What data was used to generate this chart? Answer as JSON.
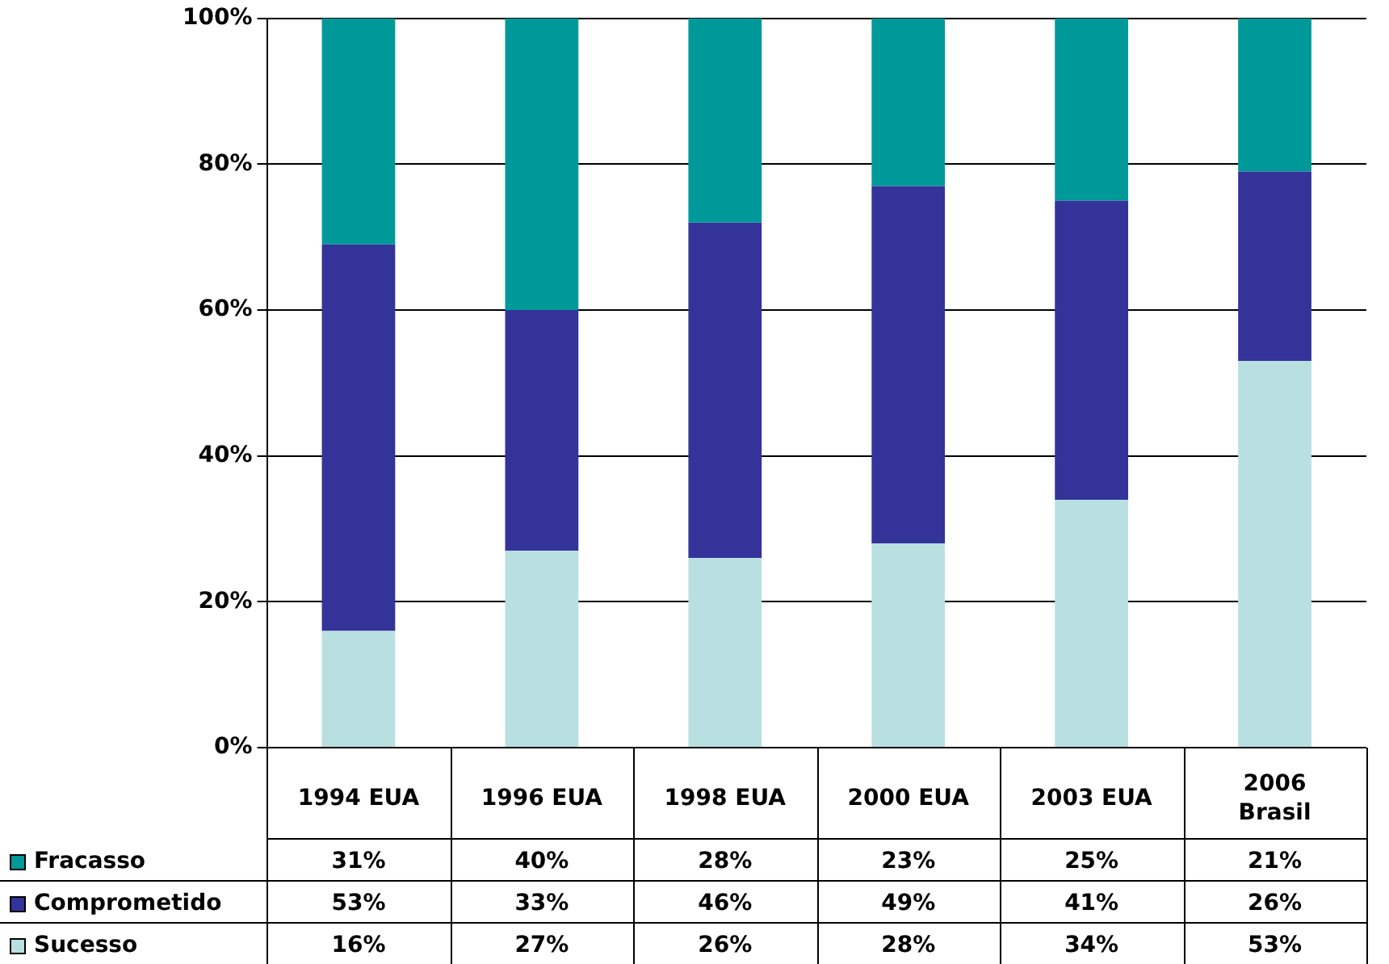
{
  "chart_data": {
    "type": "bar",
    "stacked": true,
    "categories": [
      "1994 EUA",
      "1996 EUA",
      "1998 EUA",
      "2000 EUA",
      "2003 EUA",
      "2006 Brasil"
    ],
    "series": [
      {
        "name": "Sucesso",
        "color": "#b9e0e0",
        "values": [
          16,
          27,
          26,
          28,
          34,
          53
        ],
        "value_labels": [
          "16%",
          "27%",
          "26%",
          "28%",
          "34%",
          "53%"
        ]
      },
      {
        "name": "Comprometido",
        "color": "#333399",
        "values": [
          53,
          33,
          46,
          49,
          41,
          26
        ],
        "value_labels": [
          "53%",
          "33%",
          "46%",
          "49%",
          "41%",
          "26%"
        ]
      },
      {
        "name": "Fracasso",
        "color": "#009999",
        "values": [
          31,
          40,
          28,
          23,
          25,
          21
        ],
        "value_labels": [
          "31%",
          "40%",
          "28%",
          "23%",
          "25%",
          "21%"
        ]
      }
    ],
    "ylim": [
      0,
      100
    ],
    "yticks": [
      {
        "value": 0,
        "label": "0%"
      },
      {
        "value": 20,
        "label": "20%"
      },
      {
        "value": 40,
        "label": "40%"
      },
      {
        "value": 60,
        "label": "60%"
      },
      {
        "value": 80,
        "label": "80%"
      },
      {
        "value": 100,
        "label": "100%"
      }
    ],
    "grid": "y",
    "legend": "bottom left"
  }
}
